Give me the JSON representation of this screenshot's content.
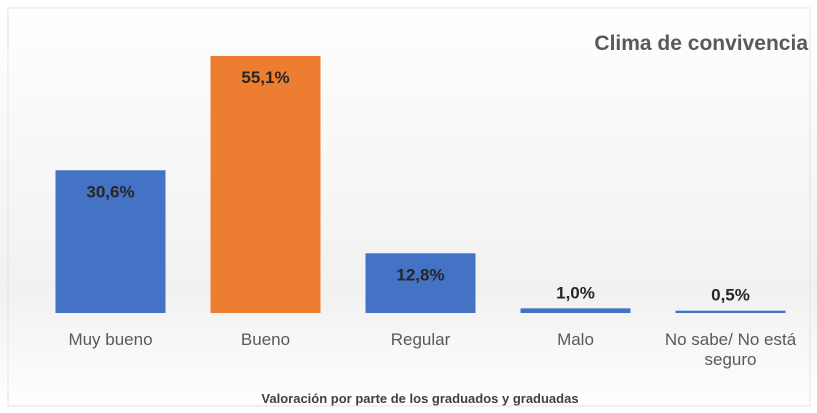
{
  "chart_data": {
    "type": "bar",
    "title": "Clima de convivencia",
    "x_label": "Valoración por parte de los graduados y graduadas",
    "categories": [
      "Muy bueno",
      "Bueno",
      "Regular",
      "Malo",
      "No sabe/ No está seguro"
    ],
    "values": [
      30.6,
      55.1,
      12.8,
      1.0,
      0.5
    ],
    "value_labels": [
      "30,6%",
      "55,1%",
      "12,8%",
      "1,0%",
      "0,5%"
    ],
    "colors": [
      "#4472c4",
      "#ed7d31",
      "#4472c4",
      "#4472c4",
      "#4472c4"
    ]
  }
}
